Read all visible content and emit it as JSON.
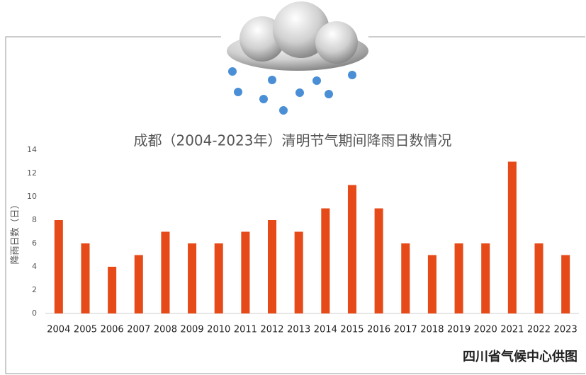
{
  "chart_data": {
    "type": "bar",
    "title": "成都（2004-2023年）清明节气期间降雨日数情况",
    "y_label": "降雨日数（日）",
    "source": "四川省气候中心供图",
    "categories": [
      "2004",
      "2005",
      "2006",
      "2007",
      "2008",
      "2009",
      "2010",
      "2011",
      "2012",
      "2013",
      "2014",
      "2015",
      "2016",
      "2017",
      "2018",
      "2019",
      "2020",
      "2021",
      "2022",
      "2023"
    ],
    "values": [
      8,
      6,
      4,
      5,
      7,
      6,
      6,
      7,
      8,
      7,
      9,
      11,
      9,
      6,
      5,
      6,
      6,
      13,
      6,
      5
    ],
    "color": "#e64a19",
    "ylim": [
      0,
      14
    ],
    "yticks": [
      0,
      2,
      4,
      6,
      8,
      10,
      12,
      14
    ],
    "grid": false
  }
}
